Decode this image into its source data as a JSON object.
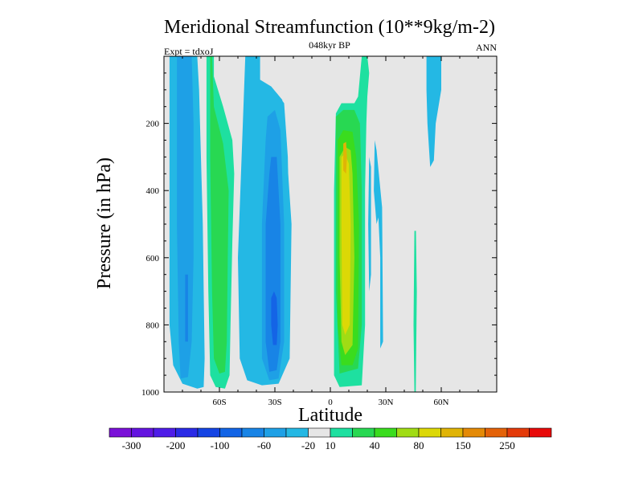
{
  "chart_data": {
    "type": "contour",
    "title": "Meridional Streamfunction (10**9kg/m-2)",
    "subtitle": "048kyr BP",
    "left_label": "Expt = tdxoJ",
    "right_label": "ANN",
    "xlabel": "Latitude",
    "ylabel": "Pressure (in hPa)",
    "xlim": [
      -90,
      90
    ],
    "ylim": [
      1000,
      0
    ],
    "x_ticks": [
      {
        "value": -60,
        "label": "60S"
      },
      {
        "value": -30,
        "label": "30S"
      },
      {
        "value": 0,
        "label": "0"
      },
      {
        "value": 30,
        "label": "30N"
      },
      {
        "value": 60,
        "label": "60N"
      }
    ],
    "y_ticks": [
      {
        "value": 200,
        "label": "200"
      },
      {
        "value": 400,
        "label": "400"
      },
      {
        "value": 600,
        "label": "600"
      },
      {
        "value": 800,
        "label": "800"
      },
      {
        "value": 1000,
        "label": "1000"
      }
    ],
    "background_color": "#e6e6e6",
    "colorbar": {
      "colors": [
        "#7a10d8",
        "#6414e0",
        "#4e1ce8",
        "#2a2ae6",
        "#1444e4",
        "#1264e6",
        "#1884e6",
        "#1ea0e6",
        "#24b8e4",
        "#e6e6e6",
        "#1ee0a0",
        "#28d852",
        "#3adc1e",
        "#a0dc14",
        "#dcd806",
        "#e0b406",
        "#e48a06",
        "#e46208",
        "#e43a0a",
        "#e80a0a"
      ],
      "labels": [
        {
          "after_box": 1,
          "text": "-300"
        },
        {
          "after_box": 3,
          "text": "-200"
        },
        {
          "after_box": 5,
          "text": "-100"
        },
        {
          "after_box": 7,
          "text": "-60"
        },
        {
          "after_box": 9,
          "text": "-20"
        },
        {
          "after_box": 10,
          "text": "10"
        },
        {
          "after_box": 12,
          "text": "40"
        },
        {
          "after_box": 14,
          "text": "80"
        },
        {
          "after_box": 16,
          "text": "150"
        },
        {
          "after_box": 18,
          "text": "250"
        }
      ]
    },
    "regions": [
      {
        "name": "sh-polar-cell",
        "level": -40,
        "color": "#24b8e4",
        "polygon": [
          [
            -87,
            0
          ],
          [
            -72,
            0
          ],
          [
            -71,
            100
          ],
          [
            -69,
            500
          ],
          [
            -68,
            900
          ],
          [
            -68.5,
            985
          ],
          [
            -72,
            990
          ],
          [
            -80,
            975
          ],
          [
            -85,
            920
          ],
          [
            -87,
            800
          ],
          [
            -87,
            300
          ]
        ]
      },
      {
        "name": "sh-polar-cell-inner",
        "level": -60,
        "color": "#1ea0e6",
        "polygon": [
          [
            -83,
            0
          ],
          [
            -75,
            0
          ],
          [
            -74,
            200
          ],
          [
            -74,
            600
          ],
          [
            -75,
            850
          ],
          [
            -77,
            955
          ],
          [
            -81,
            960
          ],
          [
            -82,
            850
          ],
          [
            -83,
            500
          ]
        ]
      },
      {
        "name": "sh-polar-cell-core",
        "level": -100,
        "color": "#1884e6",
        "polygon": [
          [
            -78.5,
            650
          ],
          [
            -77,
            650
          ],
          [
            -77,
            850
          ],
          [
            -78.5,
            850
          ]
        ]
      },
      {
        "name": "sh-ferrel-cell",
        "level": 20,
        "color": "#1ee0a0",
        "polygon": [
          [
            -67,
            0
          ],
          [
            -63,
            0
          ],
          [
            -63,
            60
          ],
          [
            -58,
            150
          ],
          [
            -53,
            250
          ],
          [
            -52,
            350
          ],
          [
            -53,
            550
          ],
          [
            -54,
            800
          ],
          [
            -54.5,
            950
          ],
          [
            -57,
            990
          ],
          [
            -62,
            985
          ],
          [
            -65,
            950
          ],
          [
            -66,
            700
          ],
          [
            -67,
            300
          ]
        ]
      },
      {
        "name": "sh-ferrel-cell-inner",
        "level": 40,
        "color": "#28d852",
        "polygon": [
          [
            -65,
            0
          ],
          [
            -64,
            0
          ],
          [
            -63,
            150
          ],
          [
            -58,
            260
          ],
          [
            -55,
            400
          ],
          [
            -55.5,
            600
          ],
          [
            -56,
            850
          ],
          [
            -57,
            940
          ],
          [
            -60,
            945
          ],
          [
            -63,
            900
          ],
          [
            -64,
            700
          ],
          [
            -65,
            300
          ]
        ]
      },
      {
        "name": "sh-upper-cell",
        "level": -20,
        "color": "#24b8e4",
        "polygon": [
          [
            -46,
            0
          ],
          [
            -38,
            0
          ],
          [
            -38,
            70
          ],
          [
            -32,
            90
          ],
          [
            -26,
            130
          ],
          [
            -25,
            200
          ],
          [
            -24,
            250
          ],
          [
            -21,
            500
          ],
          [
            -22,
            900
          ],
          [
            -28,
            975
          ],
          [
            -37,
            980
          ],
          [
            -45,
            965
          ],
          [
            -49,
            900
          ],
          [
            -50,
            600
          ],
          [
            -47,
            150
          ]
        ]
      },
      {
        "name": "sh-hadley-cell-outer",
        "level": -40,
        "color": "#24b8e4",
        "polygon": [
          [
            -35,
            110
          ],
          [
            -29,
            110
          ],
          [
            -25,
            140
          ],
          [
            -23,
            300
          ],
          [
            -22,
            600
          ],
          [
            -23,
            900
          ],
          [
            -30,
            970
          ],
          [
            -37,
            975
          ],
          [
            -39,
            900
          ],
          [
            -38,
            500
          ],
          [
            -37,
            150
          ]
        ]
      },
      {
        "name": "sh-hadley-cell",
        "level": -60,
        "color": "#1ea0e6",
        "polygon": [
          [
            -34,
            180
          ],
          [
            -30,
            160
          ],
          [
            -27,
            220
          ],
          [
            -25,
            500
          ],
          [
            -25,
            850
          ],
          [
            -28,
            960
          ],
          [
            -33,
            965
          ],
          [
            -37,
            900
          ],
          [
            -37,
            500
          ],
          [
            -35,
            250
          ]
        ]
      },
      {
        "name": "sh-hadley-cell-inner",
        "level": -100,
        "color": "#1884e6",
        "polygon": [
          [
            -32,
            300
          ],
          [
            -29,
            300
          ],
          [
            -27,
            500
          ],
          [
            -27,
            850
          ],
          [
            -29,
            935
          ],
          [
            -33,
            940
          ],
          [
            -35,
            850
          ],
          [
            -35,
            500
          ],
          [
            -33,
            350
          ]
        ]
      },
      {
        "name": "sh-hadley-cell-core",
        "level": -200,
        "color": "#1464e6",
        "polygon": [
          [
            -30.5,
            700
          ],
          [
            -29,
            720
          ],
          [
            -28.5,
            800
          ],
          [
            -29,
            860
          ],
          [
            -31,
            860
          ],
          [
            -32,
            800
          ],
          [
            -32,
            720
          ]
        ]
      },
      {
        "name": "nh-hadley-cell-outer",
        "level": 10,
        "color": "#1ee0a0",
        "polygon": [
          [
            17,
            0
          ],
          [
            20,
            0
          ],
          [
            21,
            50
          ],
          [
            20,
            120
          ],
          [
            19.5,
            200
          ],
          [
            18.8,
            400
          ],
          [
            18.8,
            800
          ],
          [
            17,
            980
          ],
          [
            5,
            985
          ],
          [
            2,
            950
          ],
          [
            2,
            400
          ],
          [
            3,
            170
          ],
          [
            6,
            140
          ],
          [
            13,
            140
          ],
          [
            15,
            120
          ]
        ]
      },
      {
        "name": "nh-hadley-cell",
        "level": 40,
        "color": "#28d852",
        "polygon": [
          [
            3,
            180
          ],
          [
            7,
            160
          ],
          [
            13,
            160
          ],
          [
            16,
            200
          ],
          [
            17,
            400
          ],
          [
            17,
            800
          ],
          [
            15,
            930
          ],
          [
            5,
            945
          ],
          [
            3,
            700
          ],
          [
            3,
            400
          ]
        ]
      },
      {
        "name": "nh-hadley-cell-inner",
        "level": 60,
        "color": "#3adc1e",
        "polygon": [
          [
            4,
            250
          ],
          [
            7,
            220
          ],
          [
            12,
            225
          ],
          [
            14,
            300
          ],
          [
            15.5,
            500
          ],
          [
            15,
            870
          ],
          [
            12,
            920
          ],
          [
            6,
            920
          ],
          [
            4,
            800
          ]
        ]
      },
      {
        "name": "nh-hadley-cell-strong",
        "level": 80,
        "color": "#a0dc14",
        "polygon": [
          [
            5,
            300
          ],
          [
            8,
            270
          ],
          [
            11,
            280
          ],
          [
            12,
            350
          ],
          [
            13,
            600
          ],
          [
            12,
            860
          ],
          [
            8,
            890
          ],
          [
            6,
            850
          ],
          [
            5,
            600
          ]
        ]
      },
      {
        "name": "nh-hadley-cell-core",
        "level": 100,
        "color": "#dcd806",
        "polygon": [
          [
            6,
            300
          ],
          [
            8,
            290
          ],
          [
            10,
            320
          ],
          [
            11,
            500
          ],
          [
            10.5,
            800
          ],
          [
            8,
            830
          ],
          [
            6.5,
            800
          ],
          [
            6,
            500
          ]
        ]
      },
      {
        "name": "nh-hadley-cell-peak",
        "level": 150,
        "color": "#e0b406",
        "polygon": [
          [
            7,
            260
          ],
          [
            8.5,
            255
          ],
          [
            9,
            300
          ],
          [
            8.5,
            350
          ],
          [
            7,
            340
          ]
        ]
      },
      {
        "name": "nh-ferrel-cell",
        "level": -20,
        "color": "#24b8e4",
        "polygon": [
          [
            24,
            250
          ],
          [
            25,
            280
          ],
          [
            28,
            450
          ],
          [
            28.5,
            850
          ],
          [
            27,
            870
          ],
          [
            27,
            600
          ],
          [
            26,
            480
          ],
          [
            25,
            500
          ],
          [
            23.5,
            400
          ]
        ]
      },
      {
        "name": "nh-ferrel-cell-2",
        "level": -20,
        "color": "#24b8e4",
        "polygon": [
          [
            21,
            300
          ],
          [
            22,
            330
          ],
          [
            22,
            650
          ],
          [
            21,
            700
          ],
          [
            20.5,
            500
          ]
        ]
      },
      {
        "name": "nh-surface-cell",
        "level": 20,
        "color": "#1ee0a0",
        "polygon": [
          [
            45.5,
            520
          ],
          [
            46.3,
            520
          ],
          [
            46.8,
            700
          ],
          [
            46.2,
            1000
          ],
          [
            45.5,
            1000
          ],
          [
            45,
            800
          ]
        ]
      },
      {
        "name": "nh-polar-cell",
        "level": -20,
        "color": "#24b8e4",
        "polygon": [
          [
            52,
            0
          ],
          [
            60,
            0
          ],
          [
            60,
            100
          ],
          [
            57,
            200
          ],
          [
            56,
            310
          ],
          [
            54,
            330
          ],
          [
            52.5,
            200
          ],
          [
            52,
            100
          ]
        ]
      }
    ]
  }
}
